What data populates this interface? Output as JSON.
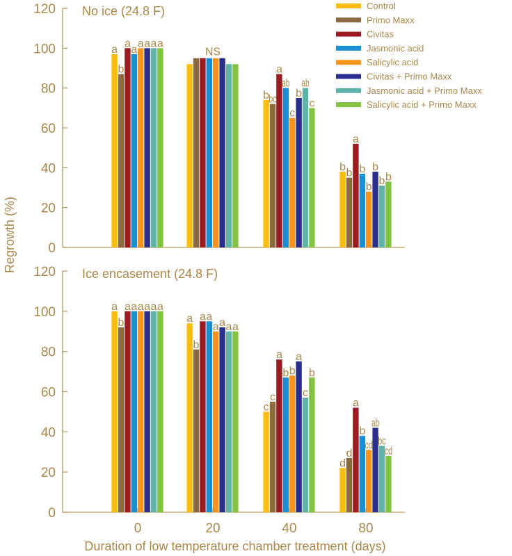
{
  "chart_data": {
    "type": "bar",
    "ylabel": "Regrowth (%)",
    "xlabel": "Duration of low temperature chamber treatment (days)",
    "categories": [
      "0",
      "20",
      "40",
      "80"
    ],
    "ylim": [
      0,
      120
    ],
    "yticks": [
      0,
      20,
      40,
      60,
      80,
      100,
      120
    ],
    "legend_position": "top-right",
    "series_names": [
      "Control",
      "Primo Maxx",
      "Civitas",
      "Jasmonic acid",
      "Salicylic acid",
      "Civitas + Primo Maxx",
      "Jasmonic acid + Primo Maxx",
      "Salicylic acid + Primo Maxx"
    ],
    "series_colors": [
      "#f9bd11",
      "#8a6a3e",
      "#9b1b20",
      "#1a8fd6",
      "#f7941e",
      "#2a2f8f",
      "#5fb3a8",
      "#84c341"
    ],
    "panels": [
      {
        "title": "No ice (24.8 F)",
        "values": [
          [
            97,
            87,
            100,
            97,
            100,
            100,
            100,
            100
          ],
          [
            92,
            95,
            95,
            95,
            95,
            95,
            92,
            92
          ],
          [
            74,
            72,
            87,
            80,
            65,
            75,
            80,
            70
          ],
          [
            38,
            35,
            52,
            37,
            28,
            38,
            31,
            33
          ]
        ],
        "labels": [
          [
            "a",
            "b",
            "a",
            "a",
            "a",
            "a",
            "a",
            "a"
          ],
          [
            "",
            "",
            "",
            "",
            "",
            "",
            "",
            ""
          ],
          [
            "b",
            "bc",
            "a",
            "ab",
            "c",
            "b",
            "ab",
            "c"
          ],
          [
            "b",
            "b",
            "a",
            "b",
            "b",
            "b",
            "b",
            "b"
          ]
        ],
        "group_labels": [
          "",
          "NS",
          "",
          ""
        ]
      },
      {
        "title": "Ice encasement (24.8 F)",
        "values": [
          [
            100,
            92,
            100,
            100,
            100,
            100,
            100,
            100
          ],
          [
            94,
            81,
            95,
            95,
            90,
            92,
            90,
            90
          ],
          [
            50,
            55,
            76,
            67,
            68,
            75,
            57,
            67
          ],
          [
            22,
            27,
            52,
            38,
            31,
            42,
            33,
            28
          ]
        ],
        "labels": [
          [
            "a",
            "b",
            "a",
            "a",
            "a",
            "a",
            "a",
            "a"
          ],
          [
            "a",
            "b",
            "a",
            "a",
            "a",
            "a",
            "a",
            "a"
          ],
          [
            "c",
            "c",
            "a",
            "b",
            "b",
            "a",
            "c",
            "b"
          ],
          [
            "d",
            "d",
            "a",
            "b",
            "cd",
            "ab",
            "bc",
            "cd"
          ]
        ],
        "group_labels": [
          "",
          "",
          "",
          ""
        ]
      }
    ]
  }
}
